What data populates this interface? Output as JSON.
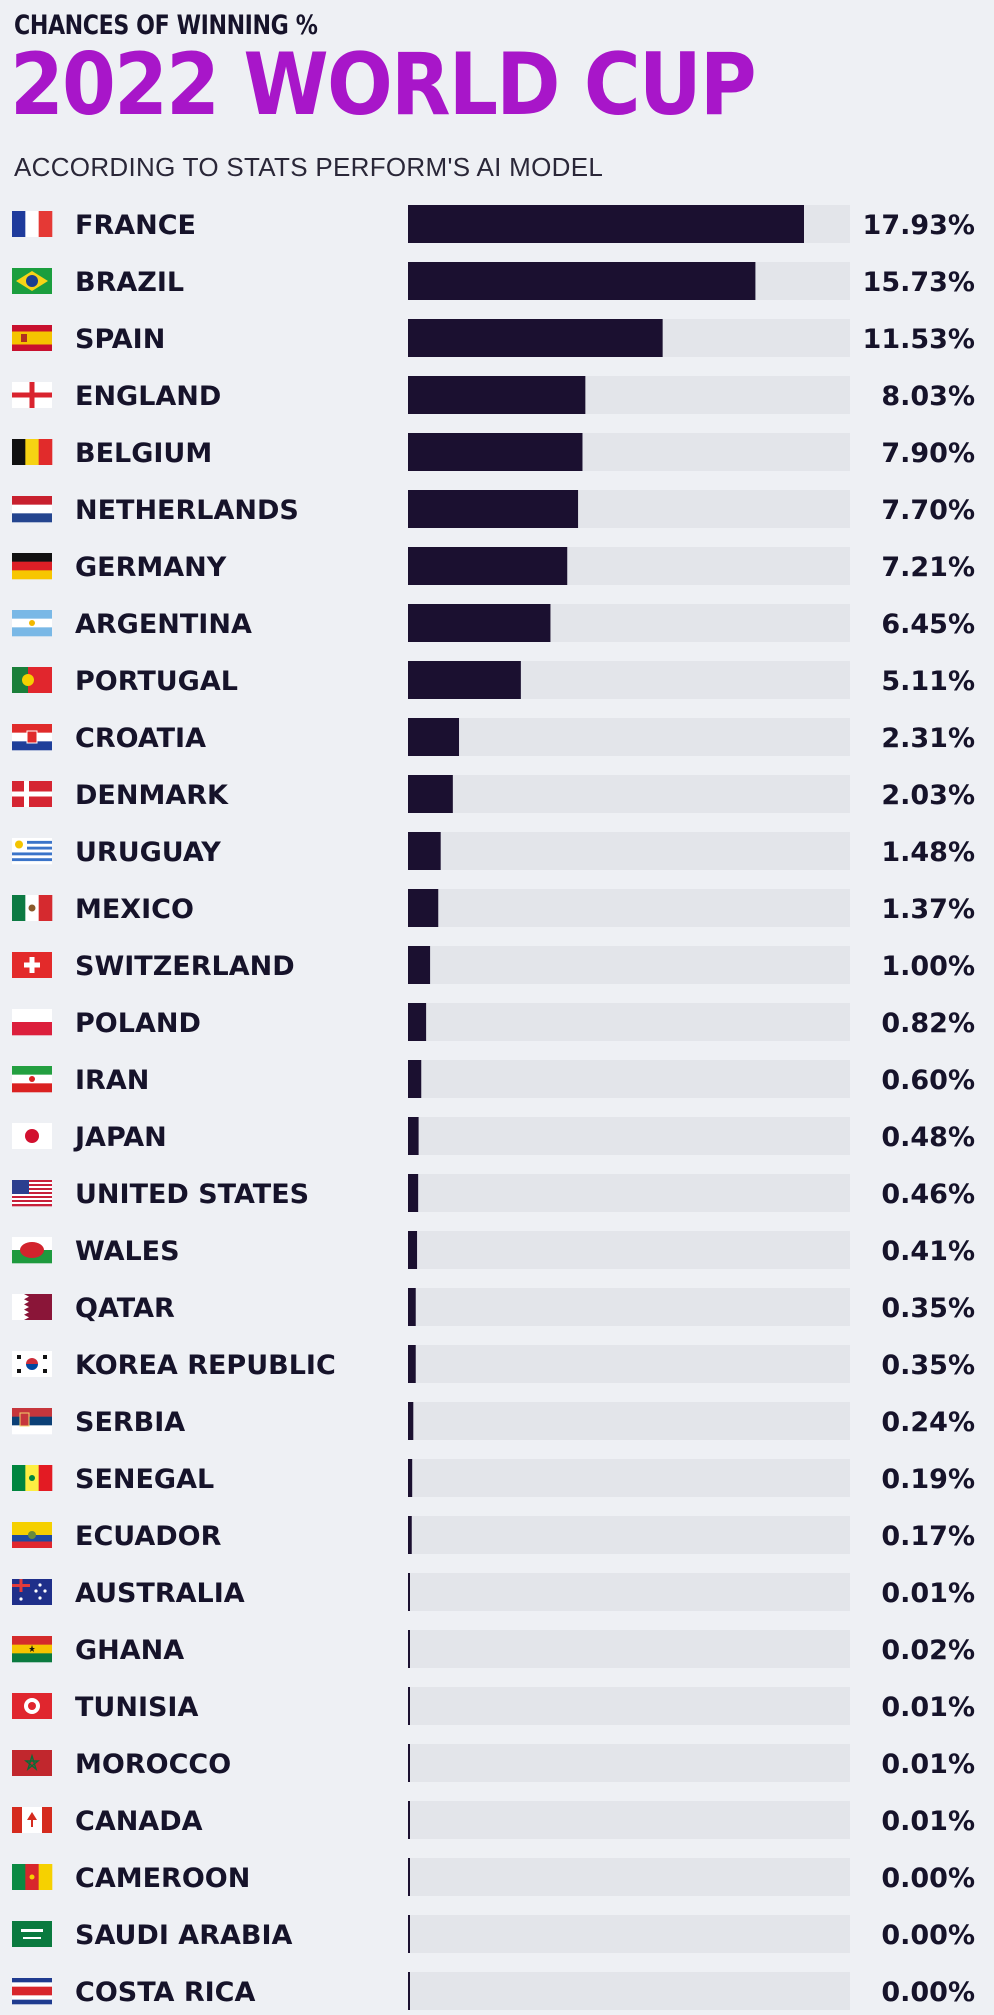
{
  "header": {
    "kicker": "CHANCES OF WINNING %",
    "title": "2022 WORLD CUP",
    "subtitle": "ACCORDING TO STATS PERFORM'S AI MODEL"
  },
  "colors": {
    "title": "#a816c9",
    "bar": "#1b1030",
    "track": "#e3e5ea",
    "background": "#eef0f4",
    "text": "#16132a"
  },
  "chart_data": {
    "type": "bar",
    "orientation": "horizontal",
    "categories": [
      "FRANCE",
      "BRAZIL",
      "SPAIN",
      "ENGLAND",
      "BELGIUM",
      "NETHERLANDS",
      "GERMANY",
      "ARGENTINA",
      "PORTUGAL",
      "CROATIA",
      "DENMARK",
      "URUGUAY",
      "MEXICO",
      "SWITZERLAND",
      "POLAND",
      "IRAN",
      "JAPAN",
      "UNITED STATES",
      "WALES",
      "QATAR",
      "KOREA REPUBLIC",
      "SERBIA",
      "SENEGAL",
      "ECUADOR",
      "AUSTRALIA",
      "GHANA",
      "TUNISIA",
      "MOROCCO",
      "CANADA",
      "CAMEROON",
      "SAUDI ARABIA",
      "COSTA RICA"
    ],
    "values": [
      17.93,
      15.73,
      11.53,
      8.03,
      7.9,
      7.7,
      7.21,
      6.45,
      5.11,
      2.31,
      2.03,
      1.48,
      1.37,
      1.0,
      0.82,
      0.6,
      0.48,
      0.46,
      0.41,
      0.35,
      0.35,
      0.24,
      0.19,
      0.17,
      0.01,
      0.02,
      0.01,
      0.01,
      0.01,
      0.0,
      0.0,
      0.0
    ],
    "labels": [
      "17.93%",
      "15.73%",
      "11.53%",
      "8.03%",
      "7.90%",
      "7.70%",
      "7.21%",
      "6.45%",
      "5.11%",
      "2.31%",
      "2.03%",
      "1.48%",
      "1.37%",
      "1.00%",
      "0.82%",
      "0.60%",
      "0.48%",
      "0.46%",
      "0.41%",
      "0.35%",
      "0.35%",
      "0.24%",
      "0.19%",
      "0.17%",
      "0.01%",
      "0.02%",
      "0.01%",
      "0.01%",
      "0.01%",
      "0.00%",
      "0.00%",
      "0.00%"
    ],
    "xlim": [
      0,
      20
    ],
    "title": "2022 WORLD CUP",
    "subtitle": "ACCORDING TO STATS PERFORM'S AI MODEL",
    "xlabel": "",
    "ylabel": "",
    "grid": false,
    "legend": "none"
  },
  "flags": [
    "france-flag-icon",
    "brazil-flag-icon",
    "spain-flag-icon",
    "england-flag-icon",
    "belgium-flag-icon",
    "netherlands-flag-icon",
    "germany-flag-icon",
    "argentina-flag-icon",
    "portugal-flag-icon",
    "croatia-flag-icon",
    "denmark-flag-icon",
    "uruguay-flag-icon",
    "mexico-flag-icon",
    "switzerland-flag-icon",
    "poland-flag-icon",
    "iran-flag-icon",
    "japan-flag-icon",
    "united-states-flag-icon",
    "wales-flag-icon",
    "qatar-flag-icon",
    "korea-republic-flag-icon",
    "serbia-flag-icon",
    "senegal-flag-icon",
    "ecuador-flag-icon",
    "australia-flag-icon",
    "ghana-flag-icon",
    "tunisia-flag-icon",
    "morocco-flag-icon",
    "canada-flag-icon",
    "cameroon-flag-icon",
    "saudi-arabia-flag-icon",
    "costa-rica-flag-icon"
  ]
}
